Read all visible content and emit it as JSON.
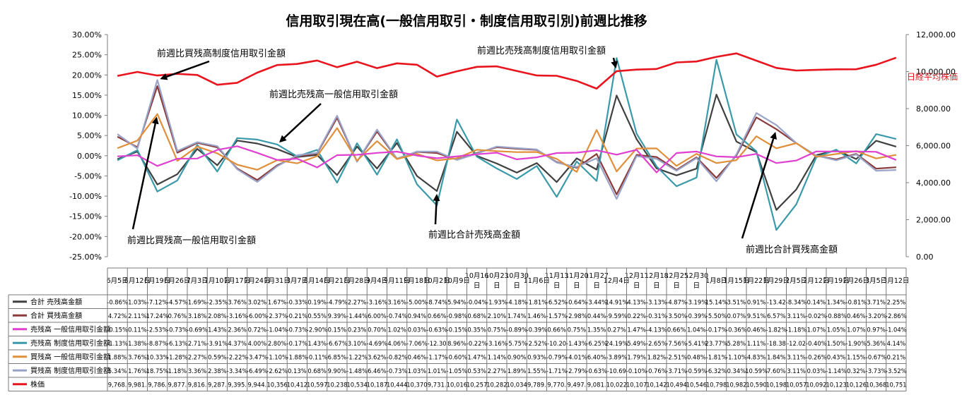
{
  "chart_data": {
    "type": "line",
    "title": "信用取引現在高(一般信用取引・制度信用取引別)前週比推移",
    "left_axis": {
      "min": -25,
      "max": 30,
      "step": 5,
      "ticks": [
        "30.00%",
        "25.00%",
        "20.00%",
        "15.00%",
        "10.00%",
        "5.00%",
        "0.00%",
        "-5.00%",
        "-10.00%",
        "-15.00%",
        "-20.00%",
        "-25.00%"
      ]
    },
    "right_axis": {
      "min": 0,
      "max": 12000,
      "step": 2000,
      "ticks": [
        "12,000.00",
        "10,000.00",
        "8,000.00",
        "6,000.00",
        "4,000.00",
        "2,000.00",
        "0.00"
      ]
    },
    "right_axis_label": "日経平均株価",
    "categories": [
      "6月5日",
      "6月12日",
      "6月19日",
      "6月26日",
      "7月3日",
      "7月10日",
      "7月17日",
      "7月24日",
      "7月31日",
      "8月7日",
      "8月14日",
      "8月21日",
      "8月28日",
      "9月4日",
      "9月11日",
      "9月18日",
      "10月2日",
      "10月9日",
      "10月16日",
      "10月23日",
      "10月30日",
      "11月6日",
      "11月13日",
      "11月20日",
      "11月27日",
      "12月4日",
      "12月11日",
      "12月18日",
      "12月25日",
      "12月30日",
      "1月8日",
      "1月15日",
      "1月22日",
      "1月29日",
      "2月5日",
      "2月12日",
      "2月19日",
      "2月26日",
      "3月5日",
      "3月12日"
    ],
    "table_labels": [
      "6月5日",
      "6月12日",
      "6月19日",
      "6月26日",
      "7月3日",
      "7月10日",
      "7月17日",
      "7月24日",
      "7月31日",
      "8月7日",
      "8月14日",
      "8月21日",
      "8月28日",
      "9月4日",
      "9月11日",
      "9月18日",
      "10月2日",
      "10月9日",
      "10月16\n日",
      "10月23\n日",
      "10月30\n日",
      "11月6日",
      "11月13\n日",
      "11月20\n日",
      "11月27\n日",
      "12月4日",
      "12月11\n日",
      "12月18\n日",
      "12月25\n日",
      "12月30\n日",
      "1月8日",
      "1月15日",
      "1月22日",
      "1月29日",
      "2月5日",
      "2月12日",
      "2月19日",
      "2月26日",
      "3月5日",
      "3月12日"
    ],
    "series": [
      {
        "name": "合計 売残高金額",
        "color": "#404040",
        "axis": "left",
        "values": [
          -0.86,
          1.03,
          -7.12,
          -4.57,
          1.69,
          -2.35,
          3.76,
          3.02,
          1.67,
          -0.33,
          0.19,
          -4.79,
          2.27,
          -3.16,
          3.16,
          -5.0,
          -8.74,
          5.94,
          -0.04,
          -1.93,
          -4.18,
          -1.81,
          -6.52,
          -0.64,
          -3.44,
          14.91,
          4.13,
          -3.13,
          -4.87,
          -3.19,
          15.14,
          3.51,
          0.91,
          -13.42,
          -8.34,
          0.14,
          1.34,
          -0.81,
          3.71,
          2.25
        ],
        "labels": [
          "-0.86%",
          "1.03%",
          "-7.12%",
          "-4.57%",
          "1.69%",
          "-2.35%",
          "3.76%",
          "3.02%",
          "1.67%",
          "-0.33%",
          "0.19%",
          "-4.79%",
          "2.27%",
          "-3.16%",
          "3.16%",
          "-5.00%",
          "-8.74%",
          "5.94%",
          "-0.04%",
          "-1.93%",
          "-4.18%",
          "-1.81%",
          "-6.52%",
          "-0.64%",
          "-3.44%",
          "14.91%",
          "4.13%",
          "-3.13%",
          "-4.87%",
          "-3.19%",
          "15.14%",
          "3.51%",
          "0.91%",
          "-13.42",
          "-8.34%",
          "0.14%",
          "1.34%",
          "-0.81%",
          "3.71%",
          "2.25%"
        ]
      },
      {
        "name": "合計 買残高金額",
        "color": "#8b3a3a",
        "axis": "left",
        "values": [
          4.72,
          2.11,
          17.24,
          0.76,
          3.18,
          2.08,
          -3.16,
          -6.0,
          -2.37,
          -0.21,
          0.55,
          9.39,
          -1.44,
          6.0,
          -0.74,
          0.94,
          0.66,
          -0.98,
          0.68,
          2.1,
          1.74,
          1.46,
          -1.57,
          -2.98,
          0.44,
          -9.59,
          0.22,
          -0.31,
          -3.5,
          -0.39,
          -5.5,
          0.07,
          9.51,
          6.57,
          3.11,
          -0.02,
          -0.88,
          0.46,
          -3.2,
          -2.86
        ],
        "labels": [
          "4.72%",
          "2.11%",
          "17.24%",
          "0.76%",
          "3.18%",
          "2.08%",
          "-3.16%",
          "-6.00%",
          "-2.37%",
          "-0.21%",
          "0.55%",
          "9.39%",
          "-1.44%",
          "6.00%",
          "-0.74%",
          "0.94%",
          "0.66%",
          "-0.98%",
          "0.68%",
          "2.10%",
          "1.74%",
          "1.46%",
          "-1.57%",
          "-2.98%",
          "0.44%",
          "-9.59%",
          "0.22%",
          "-0.31%",
          "-3.50%",
          "-0.39%",
          "-5.50%",
          "0.07%",
          "9.51%",
          "6.57%",
          "3.11%",
          "-0.02%",
          "-0.88%",
          "0.46%",
          "-3.20%",
          "-2.86%"
        ]
      },
      {
        "name": "売残高 一般信用取引金額",
        "color": "#e040d0",
        "axis": "left",
        "values": [
          -0.15,
          0.11,
          -2.53,
          -0.73,
          -0.69,
          1.43,
          2.36,
          0.72,
          -1.04,
          -0.73,
          -2.9,
          0.15,
          0.23,
          0.7,
          1.02,
          0.03,
          -0.63,
          -0.15,
          0.35,
          0.75,
          -0.89,
          -0.39,
          0.66,
          0.75,
          1.35,
          0.27,
          1.47,
          -4.13,
          0.66,
          1.04,
          -0.17,
          -0.36,
          0.46,
          -1.82,
          -1.18,
          1.07,
          1.05,
          1.07,
          0.97,
          -1.04
        ],
        "labels": [
          "-0.15%",
          "0.11%",
          "-2.53%",
          "-0.73%",
          "-0.69%",
          "1.43%",
          "2.36%",
          "0.72%",
          "-1.04%",
          "-0.73%",
          "-2.90%",
          "0.15%",
          "0.23%",
          "0.70%",
          "1.02%",
          "0.03%",
          "-0.63%",
          "-0.15%",
          "0.35%",
          "0.75%",
          "-0.89%",
          "-0.39%",
          "0.66%",
          "0.75%",
          "1.35%",
          "0.27%",
          "1.47%",
          "-4.13%",
          "0.66%",
          "1.04%",
          "-0.17%",
          "-0.36%",
          "0.46%",
          "-1.82%",
          "-1.18%",
          "1.07%",
          "1.05%",
          "1.07%",
          "0.97%",
          "-1.04%"
        ]
      },
      {
        "name": "売残高 制度信用取引金額",
        "color": "#3a9aaa",
        "axis": "left",
        "values": [
          -1.13,
          1.38,
          -8.87,
          -6.13,
          2.71,
          -3.91,
          4.37,
          4.0,
          2.8,
          -0.17,
          1.43,
          -6.67,
          3.1,
          -4.69,
          4.06,
          -7.06,
          -12.3,
          8.96,
          -0.22,
          -3.16,
          -5.75,
          -2.52,
          -10.2,
          -1.43,
          -6.25,
          24.19,
          5.49,
          -2.65,
          -7.56,
          -5.41,
          23.77,
          5.28,
          1.11,
          -18.38,
          -12.02,
          -0.4,
          1.5,
          -1.9,
          5.36,
          4.14
        ],
        "labels": [
          "-1.13%",
          "1.38%",
          "-8.87%",
          "-6.13%",
          "2.71%",
          "-3.91%",
          "4.37%",
          "4.00%",
          "2.80%",
          "-0.17%",
          "1.43%",
          "-6.67%",
          "3.10%",
          "-4.69%",
          "4.06%",
          "-7.06%",
          "-12.30",
          "8.96%",
          "-0.22%",
          "-3.16%",
          "-5.75%",
          "-2.52%",
          "-10.20",
          "-1.43%",
          "-6.25%",
          "24.19%",
          "5.49%",
          "-2.65%",
          "-7.56%",
          "-5.41%",
          "23.77%",
          "5.28%",
          "1.11%",
          "-18.38",
          "-12.02",
          "-0.40%",
          "1.50%",
          "-1.90%",
          "5.36%",
          "4.14%"
        ]
      },
      {
        "name": "買残高 一般信用取引金額",
        "color": "#e08f3a",
        "axis": "left",
        "values": [
          1.88,
          3.76,
          10.33,
          -1.28,
          2.27,
          0.59,
          -2.22,
          -3.47,
          -1.1,
          -1.88,
          -0.11,
          6.85,
          -1.22,
          3.62,
          -0.82,
          0.46,
          -1.17,
          -0.6,
          1.47,
          1.14,
          0.9,
          0.93,
          -0.79,
          -4.01,
          6.4,
          -3.89,
          1.79,
          1.82,
          -2.51,
          0.48,
          -1.81,
          -1.1,
          4.83,
          1.84,
          3.11,
          -0.26,
          0.43,
          1.15,
          -0.67,
          0.21
        ],
        "labels": [
          "1.88%",
          "3.76%",
          "10.33%",
          "-1.28%",
          "2.27%",
          "0.59%",
          "-2.22%",
          "-3.47%",
          "-1.10%",
          "-1.88%",
          "-0.11%",
          "6.85%",
          "-1.22%",
          "3.62%",
          "-0.82%",
          "0.46%",
          "-1.17%",
          "-0.60%",
          "1.47%",
          "1.14%",
          "0.90%",
          "0.93%",
          "-0.79%",
          "-4.01%",
          "6.40%",
          "-3.89%",
          "1.79%",
          "1.82%",
          "-2.51%",
          "0.48%",
          "-1.81%",
          "-1.10%",
          "4.83%",
          "1.84%",
          "3.11%",
          "-0.26%",
          "0.43%",
          "1.15%",
          "-0.67%",
          "0.21%"
        ]
      },
      {
        "name": "買残高 制度信用取引金額",
        "color": "#9aa4c8",
        "axis": "left",
        "values": [
          5.34,
          1.76,
          18.75,
          1.18,
          3.36,
          2.38,
          -3.34,
          -6.49,
          -2.62,
          0.13,
          0.68,
          9.9,
          -1.48,
          6.46,
          -0.73,
          1.03,
          1.01,
          -1.05,
          0.53,
          2.27,
          1.89,
          1.55,
          -1.71,
          -2.79,
          -0.63,
          -10.69,
          -0.1,
          -0.76,
          -3.71,
          -0.59,
          -6.32,
          0.34,
          10.59,
          7.6,
          3.11,
          0.03,
          -1.14,
          0.32,
          -3.73,
          -3.52
        ],
        "labels": [
          "5.34%",
          "1.76%",
          "18.75%",
          "1.18%",
          "3.36%",
          "2.38%",
          "-3.34%",
          "-6.49%",
          "-2.62%",
          "0.13%",
          "0.68%",
          "9.90%",
          "-1.48%",
          "6.46%",
          "-0.73%",
          "1.03%",
          "1.01%",
          "-1.05%",
          "0.53%",
          "2.27%",
          "1.89%",
          "1.55%",
          "-1.71%",
          "-2.79%",
          "-0.63%",
          "-10.69",
          "-0.10%",
          "-0.76%",
          "-3.71%",
          "-0.59%",
          "-6.32%",
          "0.34%",
          "10.59%",
          "7.60%",
          "3.11%",
          "0.03%",
          "-1.14%",
          "0.32%",
          "-3.73%",
          "-3.52%"
        ]
      },
      {
        "name": "株価",
        "color": "#e8141e",
        "axis": "right",
        "values": [
          9768,
          9981,
          9786,
          9877,
          9816,
          9287,
          9395,
          9944,
          10356,
          10412,
          10597,
          10238,
          10534,
          10187,
          10444,
          10370,
          9731,
          10016,
          10257,
          10282,
          10034,
          9789,
          9770,
          9497,
          9081,
          10022,
          10107,
          10142,
          10494,
          10546,
          10798,
          10982,
          10590,
          10198,
          10057,
          10092,
          10123,
          10126,
          10368,
          10751
        ],
        "labels": [
          "9,768.",
          "9,981.",
          "9,786.",
          "9,877.",
          "9,816.",
          "9,287.",
          "9,395.",
          "9,944.",
          "10,356",
          "10,412",
          "10,597",
          "10,238",
          "10,534",
          "10,187",
          "10,444",
          "10,370",
          "9,731.",
          "10,016",
          "10,257",
          "10,282",
          "10,034",
          "9,789.",
          "9,770.",
          "9,497.",
          "9,081.",
          "10,022",
          "10,107",
          "10,142",
          "10,494",
          "10,546",
          "10,798",
          "10,982",
          "10,590",
          "10,198",
          "10,057",
          "10,092",
          "10,123",
          "10,126",
          "10,368",
          "10,751"
        ]
      }
    ],
    "annotations": [
      {
        "text": "前週比買残高制度信用取引金額",
        "point": {
          "series": 5,
          "index": 2
        }
      },
      {
        "text": "前週比売残高一般信用取引金額",
        "point": {
          "series": 3,
          "index": 8
        }
      },
      {
        "text": "前週比売残高制度信用取引金額",
        "point": {
          "series": 6,
          "index": 25
        }
      },
      {
        "text": "前週比買残高一般信用取引金額",
        "point": {
          "series": 4,
          "index": 2
        }
      },
      {
        "text": "前週比合計売残高金額",
        "point": {
          "series": 0,
          "index": 16
        }
      },
      {
        "text": "前週比合計買残高金額",
        "point": {
          "series": 1,
          "index": 33
        }
      }
    ],
    "grid": false,
    "legend": "data-table-bottom"
  }
}
